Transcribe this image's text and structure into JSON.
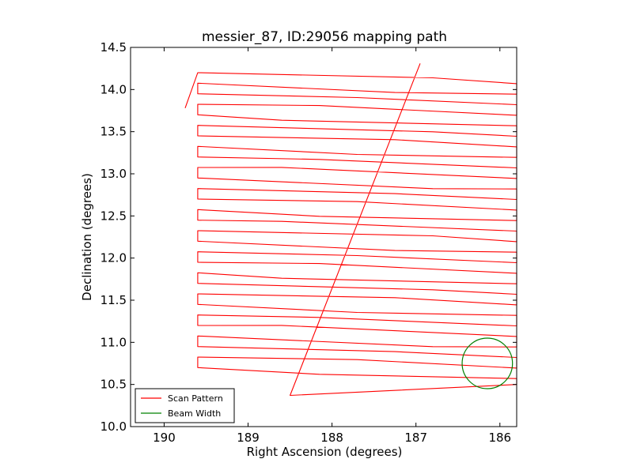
{
  "chart_data": {
    "type": "line",
    "title": "messier_87, ID:29056 mapping path",
    "xlabel": "Right Ascension (degrees)",
    "ylabel": "Declination (degrees)",
    "xlim": [
      190.4,
      185.8
    ],
    "ylim": [
      10.0,
      14.5
    ],
    "x_ticks": [
      190,
      189,
      188,
      187,
      186
    ],
    "x_tick_labels": [
      "190",
      "189",
      "188",
      "187",
      "186"
    ],
    "y_ticks": [
      10.0,
      10.5,
      11.0,
      11.5,
      12.0,
      12.5,
      13.0,
      13.5,
      14.0,
      14.5
    ],
    "y_tick_labels": [
      "10.0",
      "10.5",
      "11.0",
      "11.5",
      "12.0",
      "12.5",
      "13.0",
      "13.5",
      "14.0",
      "14.5"
    ],
    "grid": false,
    "legend_position": "lower-left",
    "scan": {
      "x_left": 189.6,
      "x_right": 185.8,
      "dec_start": 10.58,
      "dec_end": 14.2,
      "dec_step": 0.125,
      "tilt": 0.13,
      "start_x": 189.75,
      "start_y": 13.78,
      "end_x": 186.95,
      "end_y": 14.31
    },
    "beam": {
      "center_ra": 186.15,
      "center_dec": 10.75,
      "radius_deg": 0.3
    },
    "series": [
      {
        "name": "Scan Pattern",
        "color": "#ff0000"
      },
      {
        "name": "Beam Width",
        "color": "#008000"
      }
    ]
  }
}
